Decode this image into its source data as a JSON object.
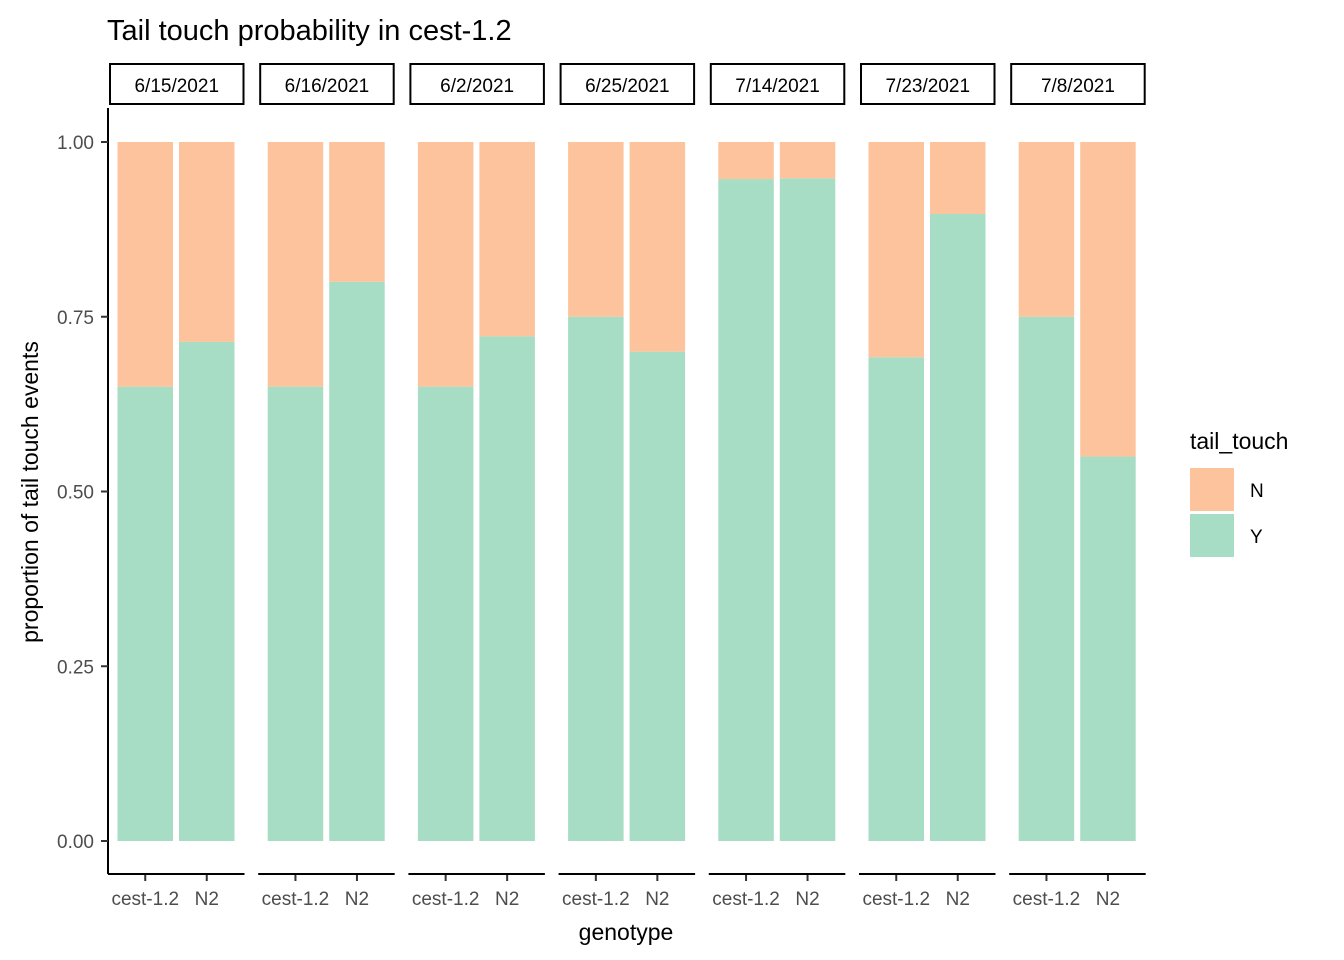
{
  "chart_data": {
    "type": "bar",
    "stacked": true,
    "title": "Tail touch probability in cest-1.2",
    "xlabel": "genotype",
    "ylabel": "proportion of tail touch events",
    "ylim": [
      0,
      1
    ],
    "y_ticks": [
      "0.00",
      "0.25",
      "0.50",
      "0.75",
      "1.00"
    ],
    "grid": false,
    "legend": {
      "title": "tail_touch",
      "placement": "right",
      "entries": [
        {
          "name": "N",
          "color": "#FCC39C"
        },
        {
          "name": "Y",
          "color": "#A6DDC4"
        }
      ]
    },
    "categories": [
      "cest-1.2",
      "N2"
    ],
    "facets": [
      {
        "label": "6/15/2021",
        "Y": [
          0.65,
          0.714
        ],
        "N": [
          0.35,
          0.286
        ]
      },
      {
        "label": "6/16/2021",
        "Y": [
          0.65,
          0.8
        ],
        "N": [
          0.35,
          0.2
        ]
      },
      {
        "label": "6/2/2021",
        "Y": [
          0.65,
          0.722
        ],
        "N": [
          0.35,
          0.278
        ]
      },
      {
        "label": "6/25/2021",
        "Y": [
          0.75,
          0.7
        ],
        "N": [
          0.25,
          0.3
        ]
      },
      {
        "label": "7/14/2021",
        "Y": [
          0.947,
          0.948
        ],
        "N": [
          0.053,
          0.052
        ]
      },
      {
        "label": "7/23/2021",
        "Y": [
          0.692,
          0.897
        ],
        "N": [
          0.308,
          0.103
        ]
      },
      {
        "label": "7/8/2021",
        "Y": [
          0.75,
          0.55
        ],
        "N": [
          0.25,
          0.45
        ]
      }
    ]
  }
}
